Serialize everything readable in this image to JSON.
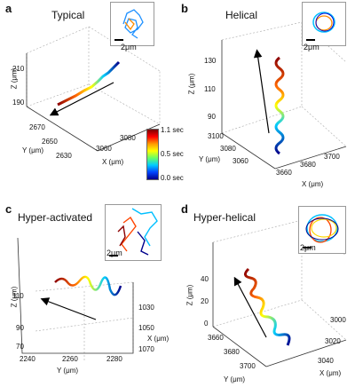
{
  "panels": {
    "a": {
      "letter": "a",
      "title": "Typical",
      "zlabel": "Z (μm)",
      "ylabel": "Y (μm)",
      "xlabel": "X (μm)",
      "zticks": [
        "210",
        "190"
      ],
      "yticks": [
        "2670",
        "2650",
        "2630"
      ],
      "xticks": [
        "3060",
        "3080"
      ],
      "scale": "2μm"
    },
    "b": {
      "letter": "b",
      "title": "Helical",
      "zlabel": "Z (μm)",
      "ylabel": "Y (μm)",
      "xlabel": "X (μm)",
      "zticks": [
        "130",
        "110",
        "90"
      ],
      "yticks": [
        "3100",
        "3080",
        "3060"
      ],
      "xticks": [
        "3660",
        "3680",
        "3700"
      ],
      "scale": "2μm"
    },
    "c": {
      "letter": "c",
      "title": "Hyper-activated",
      "zlabel": "Z (μm)",
      "ylabel": "Y (μm)",
      "xlabel": "X (μm)",
      "zticks": [
        "110",
        "90",
        "70"
      ],
      "yticks": [
        "2240",
        "2260",
        "2280"
      ],
      "xticks": [
        "1030",
        "1050",
        "1070"
      ],
      "scale": "2μm"
    },
    "d": {
      "letter": "d",
      "title": "Hyper-helical",
      "zlabel": "Z (μm)",
      "ylabel": "Y (μm)",
      "xlabel": "X (μm)",
      "zticks": [
        "40",
        "20",
        "0"
      ],
      "yticks": [
        "3660",
        "3680",
        "3700"
      ],
      "xticks": [
        "3000",
        "3020",
        "3040"
      ],
      "scale": "2μm"
    }
  },
  "colorbar": {
    "ticks": [
      "1.1 sec",
      "0.5 sec",
      "0.0 sec"
    ]
  },
  "colors": {
    "start": "#00008b",
    "end": "#8b0000"
  }
}
